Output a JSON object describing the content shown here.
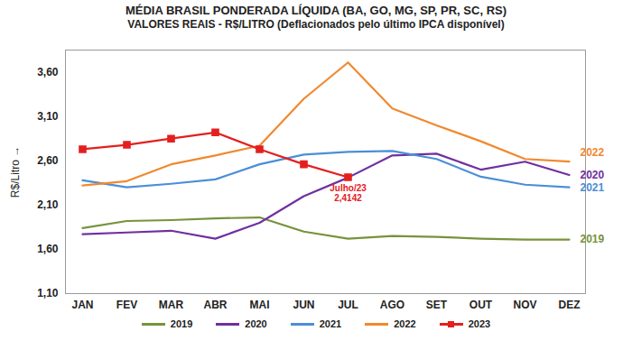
{
  "chart_data": {
    "type": "line",
    "title": "MÉDIA BRASIL PONDERADA LÍQUIDA (BA, GO, MG, SP, PR, SC, RS)",
    "subtitle": "VALORES REAIS - R$/LITRO (Deflacionados pelo último IPCA disponível)",
    "y_label": "R$/Litro",
    "categories": [
      "JAN",
      "FEV",
      "MAR",
      "ABR",
      "MAI",
      "JUN",
      "JUL",
      "AGO",
      "SET",
      "OUT",
      "NOV",
      "DEZ"
    ],
    "series": [
      {
        "name": "2019",
        "color": "#77933c",
        "values": [
          1.84,
          1.92,
          1.93,
          1.95,
          1.96,
          1.8,
          1.72,
          1.75,
          1.74,
          1.72,
          1.71,
          1.71
        ]
      },
      {
        "name": "2020",
        "color": "#7030a0",
        "values": [
          1.77,
          1.79,
          1.81,
          1.72,
          1.9,
          2.2,
          2.41,
          2.66,
          2.68,
          2.5,
          2.59,
          2.44
        ]
      },
      {
        "name": "2021",
        "color": "#4a8fd8",
        "values": [
          2.38,
          2.3,
          2.34,
          2.39,
          2.56,
          2.67,
          2.7,
          2.71,
          2.62,
          2.42,
          2.33,
          2.3
        ]
      },
      {
        "name": "2022",
        "color": "#f0892f",
        "values": [
          2.32,
          2.37,
          2.56,
          2.66,
          2.77,
          3.3,
          3.71,
          3.19,
          3.0,
          2.82,
          2.62,
          2.59
        ]
      },
      {
        "name": "2023",
        "color": "#e3201f",
        "marker": "square",
        "values": [
          2.73,
          2.78,
          2.85,
          2.92,
          2.73,
          2.56,
          2.4142,
          null,
          null,
          null,
          null,
          null
        ]
      }
    ],
    "annotations": [
      {
        "text": "Julho/23",
        "x": "JUL",
        "y": 2.4142,
        "color": "#e3201f"
      },
      {
        "text": "2,4142",
        "x": "JUL",
        "y": 2.4142,
        "color": "#e3201f"
      }
    ],
    "ylim": [
      1.1,
      3.85
    ],
    "yticks": [
      {
        "value": 1.1,
        "label": "1,10"
      },
      {
        "value": 1.6,
        "label": "1,60"
      },
      {
        "value": 2.1,
        "label": "2,10"
      },
      {
        "value": 2.6,
        "label": "2,60"
      },
      {
        "value": 3.1,
        "label": "3,10"
      },
      {
        "value": 3.6,
        "label": "3,60"
      }
    ],
    "grid": false,
    "legend": "bottom"
  }
}
